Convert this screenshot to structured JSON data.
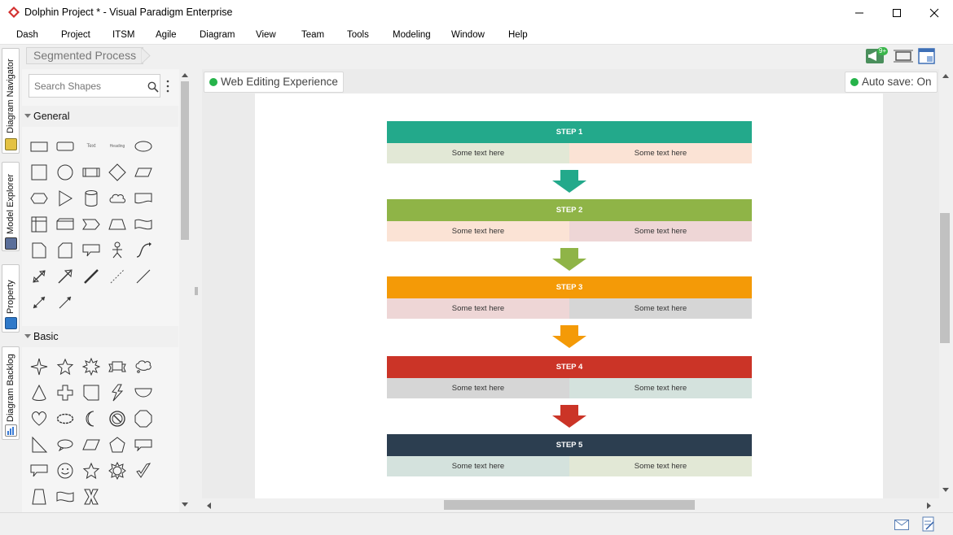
{
  "window": {
    "title": "Dolphin Project * - Visual Paradigm Enterprise"
  },
  "menu": [
    "Dash",
    "Project",
    "ITSM",
    "Agile",
    "Diagram",
    "View",
    "Team",
    "Tools",
    "Modeling",
    "Window",
    "Help"
  ],
  "left_tabs": [
    "Diagram Navigator",
    "Model Explorer",
    "Property",
    "Diagram Backlog"
  ],
  "breadcrumb": "Segmented Process",
  "toolbar": {
    "notification_badge": "9+"
  },
  "shape_panel": {
    "search_placeholder": "Search Shapes",
    "categories": [
      "General",
      "Basic"
    ],
    "general_text_shape": "Text",
    "general_heading_shape": "Heading"
  },
  "canvas": {
    "web_editing_label": "Web Editing Experience",
    "autosave_label": "Auto save: On",
    "steps": [
      {
        "title": "STEP 1",
        "color": "#23a98b",
        "cells": [
          "Some text here",
          "Some text here"
        ],
        "cell_colors": [
          "#e2e8d6",
          "#fbe3d5"
        ]
      },
      {
        "title": "STEP 2",
        "color": "#8fb447",
        "cells": [
          "Some text here",
          "Some text here"
        ],
        "cell_colors": [
          "#fbe3d5",
          "#eed6d6"
        ]
      },
      {
        "title": "STEP 3",
        "color": "#f49a07",
        "cells": [
          "Some text here",
          "Some text here"
        ],
        "cell_colors": [
          "#eed6d6",
          "#d6d6d6"
        ]
      },
      {
        "title": "STEP 4",
        "color": "#cb3427",
        "cells": [
          "Some text here",
          "Some text here"
        ],
        "cell_colors": [
          "#d6d6d6",
          "#d4e2dd"
        ]
      },
      {
        "title": "STEP 5",
        "color": "#2c3e50",
        "cells": [
          "Some text here",
          "Some text here"
        ],
        "cell_colors": [
          "#d4e2dd",
          "#e2e8d6"
        ]
      }
    ]
  }
}
